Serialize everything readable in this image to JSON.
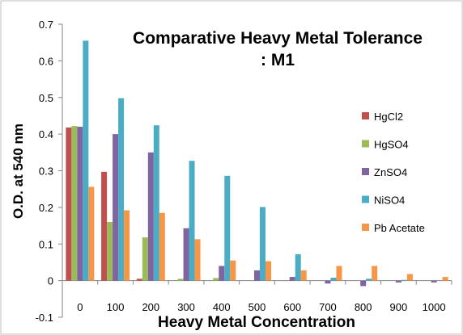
{
  "chart_data": {
    "type": "bar",
    "title_line1": "Comparative Heavy Metal Tolerance",
    "title_line2": ": M1",
    "xlabel": "Heavy Metal Concentration",
    "ylabel": "O.D. at 540 nm",
    "ylim": [
      -0.1,
      0.7
    ],
    "yticks": [
      "-0.1",
      "0",
      "0.1",
      "0.2",
      "0.3",
      "0.4",
      "0.5",
      "0.6",
      "0.7"
    ],
    "categories": [
      "0",
      "100",
      "200",
      "300",
      "400",
      "500",
      "600",
      "700",
      "800",
      "900",
      "1000"
    ],
    "grid": false,
    "legend_position": "right",
    "series": [
      {
        "name": "HgCl2",
        "color": "#c0504d",
        "values": [
          0.418,
          0.297,
          0.005,
          0.0,
          0.0,
          0.0,
          0.0,
          0.0,
          0.0,
          0.0,
          0.0
        ]
      },
      {
        "name": "HgSO4",
        "color": "#9bbb59",
        "values": [
          0.422,
          0.16,
          0.118,
          0.005,
          0.007,
          0.0,
          0.0,
          0.0,
          0.0,
          0.0,
          0.0
        ]
      },
      {
        "name": "ZnSO4",
        "color": "#8064a2",
        "values": [
          0.42,
          0.4,
          0.35,
          0.143,
          0.04,
          0.028,
          0.01,
          -0.008,
          -0.015,
          -0.005,
          -0.005
        ]
      },
      {
        "name": "NiSO4",
        "color": "#4bacc6",
        "values": [
          0.655,
          0.498,
          0.424,
          0.327,
          0.286,
          0.201,
          0.072,
          0.008,
          0.005,
          0.002,
          0.0
        ]
      },
      {
        "name": "Pb Acetate",
        "color": "#f79646",
        "values": [
          0.256,
          0.192,
          0.185,
          0.113,
          0.055,
          0.053,
          0.028,
          0.04,
          0.04,
          0.018,
          0.01
        ]
      }
    ]
  }
}
